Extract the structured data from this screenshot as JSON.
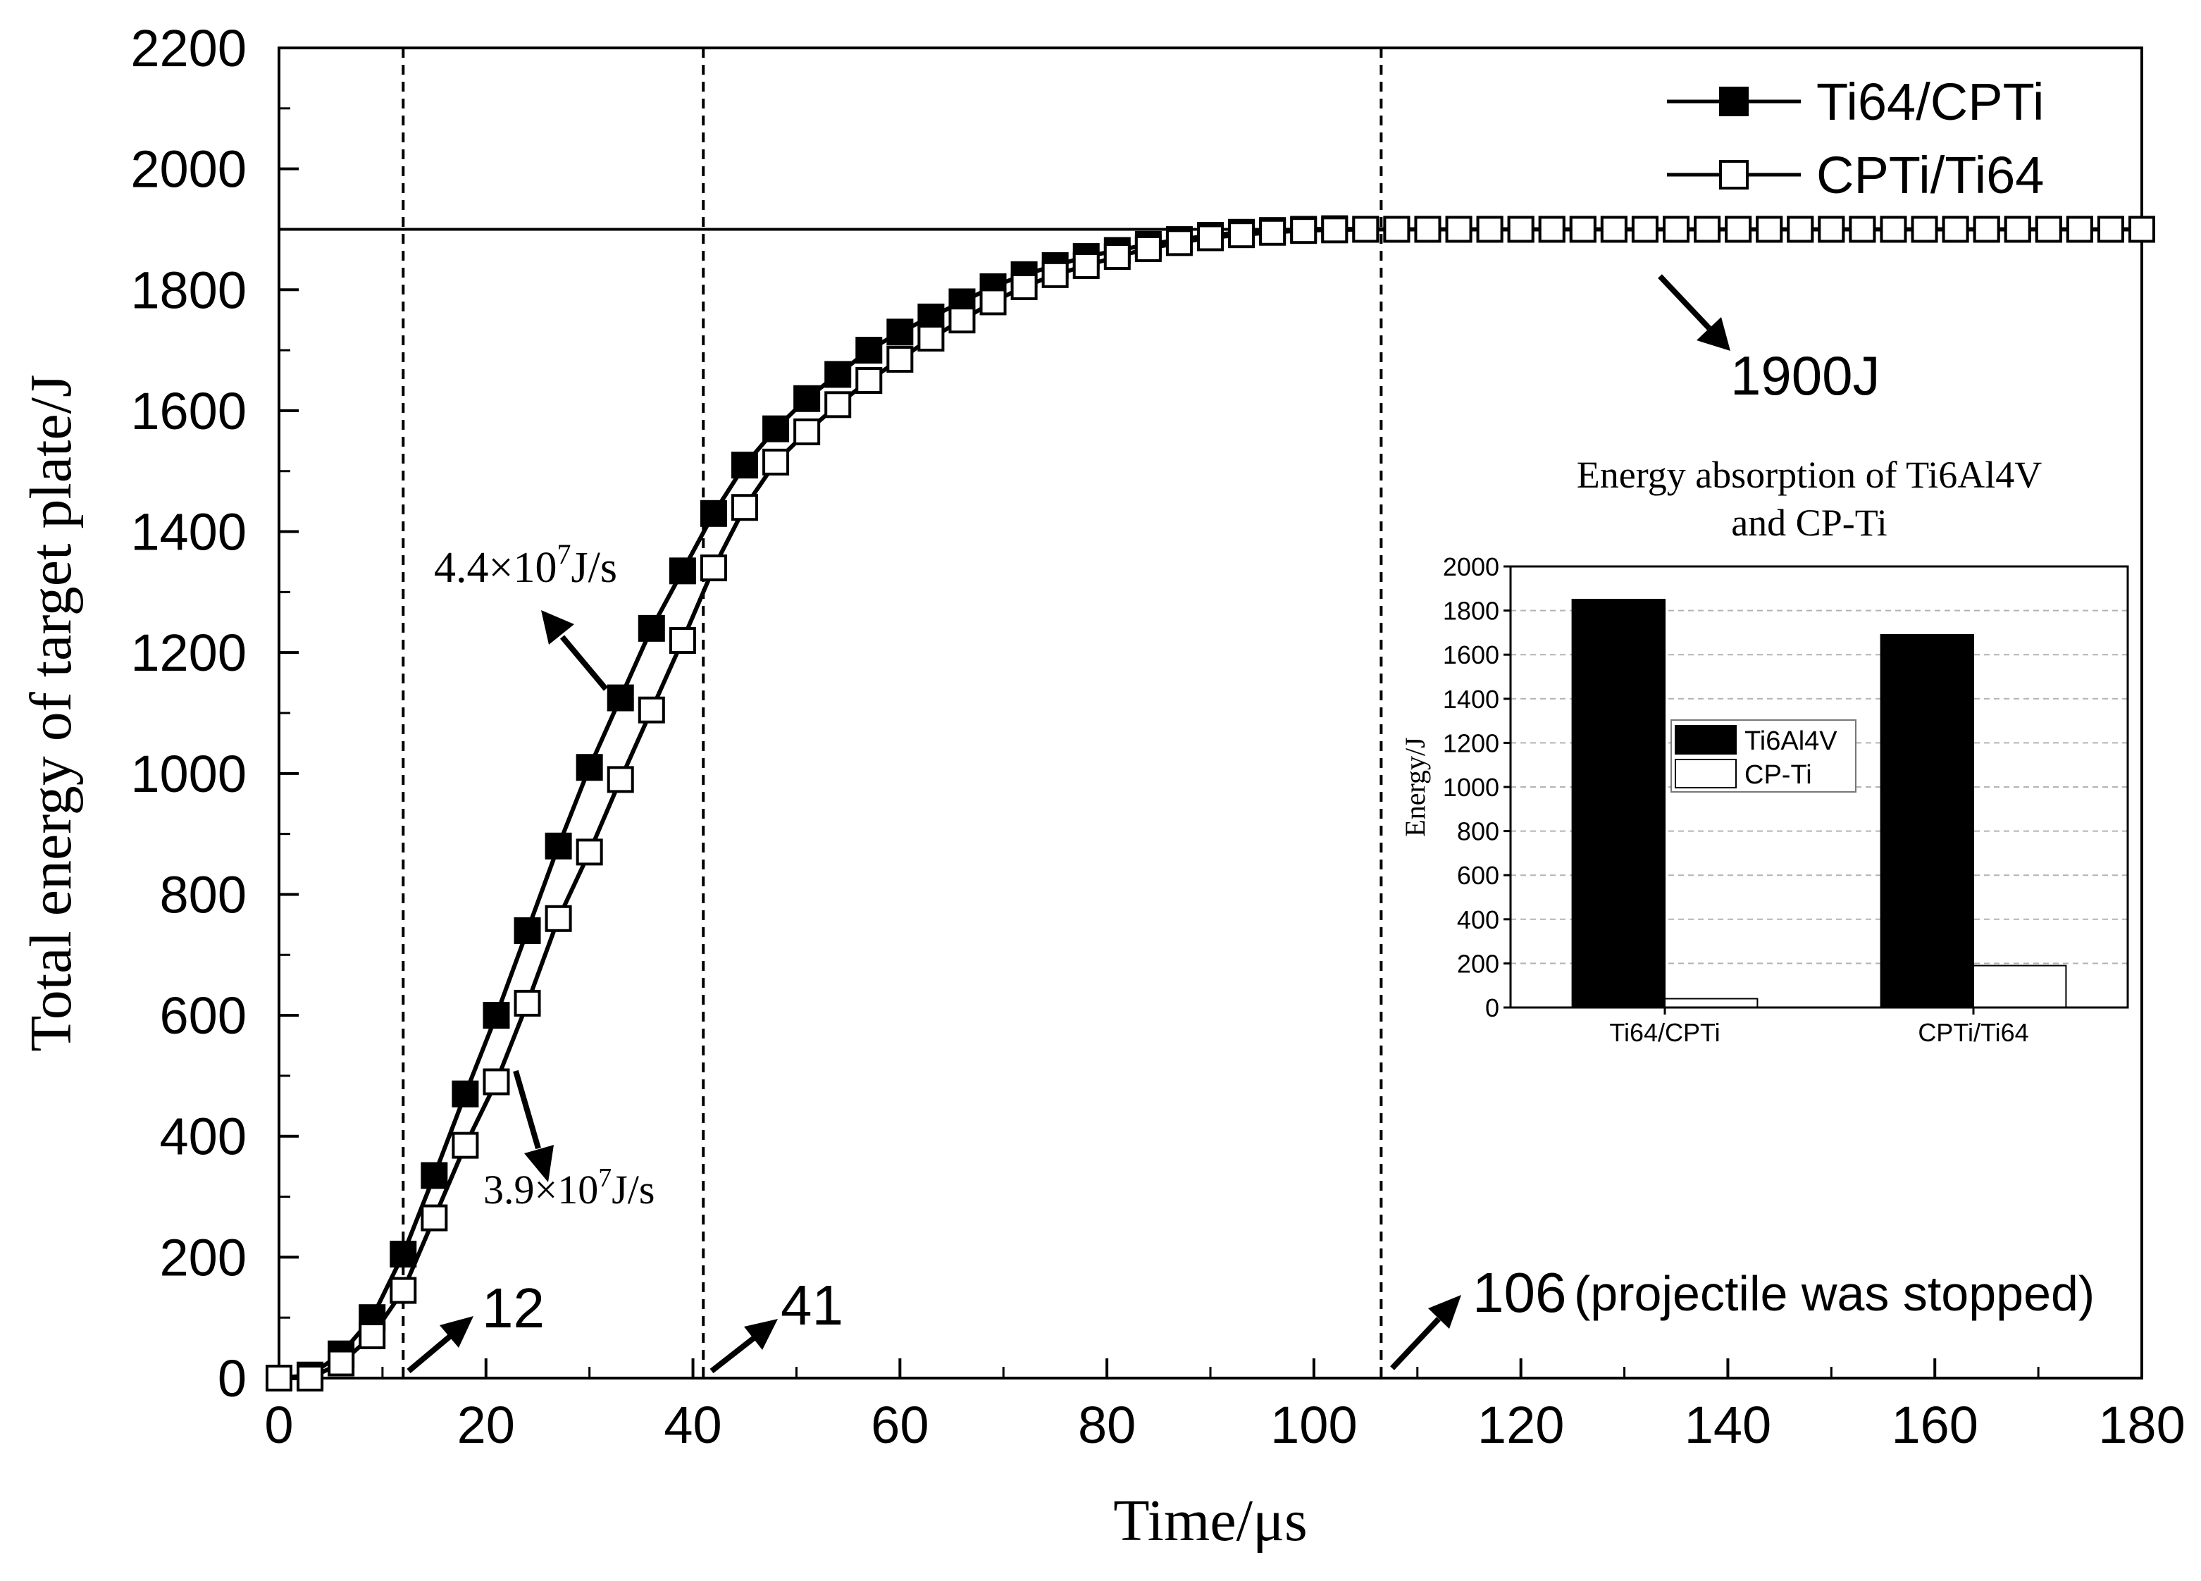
{
  "chart_data": [
    {
      "type": "line",
      "title": "",
      "xlabel": "Time/μs",
      "ylabel": "Total energy of target plate/J",
      "xlim": [
        0,
        180
      ],
      "ylim": [
        0,
        2200
      ],
      "xticks": [
        0,
        20,
        40,
        60,
        80,
        100,
        120,
        140,
        160,
        180
      ],
      "yticks": [
        0,
        200,
        400,
        600,
        800,
        1000,
        1200,
        1400,
        1600,
        1800,
        2000,
        2200
      ],
      "grid": false,
      "legend_position": "top-right",
      "colors": {
        "ink": "#000000",
        "background": "#ffffff",
        "grid": "#b3b3b3"
      },
      "reference_line": {
        "y": 1900,
        "label": "1900J"
      },
      "vertical_lines": [
        {
          "x": 12,
          "label": "12"
        },
        {
          "x": 41,
          "label": "41"
        },
        {
          "x": 106.5,
          "label": "106",
          "note": "(projectile was stopped)"
        }
      ],
      "slope_labels": {
        "upper": {
          "base": "4.4×10",
          "exp": "7",
          "unit": "J/s"
        },
        "lower": {
          "base": "3.9×10",
          "exp": "7",
          "unit": "J/s"
        }
      },
      "series": [
        {
          "name": "Ti64/CPTi",
          "marker": "filled-square",
          "x": [
            0,
            3,
            6,
            9,
            12,
            15,
            18,
            21,
            24,
            27,
            30,
            33,
            36,
            39,
            42,
            45,
            48,
            51,
            54,
            57,
            60,
            63,
            66,
            69,
            72,
            75,
            78,
            81,
            84,
            87,
            90,
            93,
            96,
            99,
            102,
            105,
            108,
            111,
            114,
            117,
            120,
            123,
            126,
            129,
            132,
            135,
            138,
            141,
            144,
            147,
            150,
            153,
            156,
            159,
            162,
            165,
            168,
            171,
            174,
            177,
            180
          ],
          "values": [
            0,
            5,
            40,
            100,
            205,
            335,
            470,
            600,
            740,
            880,
            1010,
            1125,
            1240,
            1335,
            1430,
            1510,
            1570,
            1620,
            1660,
            1700,
            1730,
            1755,
            1780,
            1805,
            1825,
            1840,
            1855,
            1865,
            1875,
            1883,
            1890,
            1895,
            1898,
            1900,
            1901,
            1900,
            1900,
            1900,
            1900,
            1900,
            1900,
            1900,
            1900,
            1900,
            1900,
            1900,
            1900,
            1900,
            1900,
            1900,
            1900,
            1900,
            1900,
            1900,
            1900,
            1900,
            1900,
            1900,
            1900,
            1900,
            1900
          ]
        },
        {
          "name": "CPTi/Ti64",
          "marker": "open-square",
          "x": [
            0,
            3,
            6,
            9,
            12,
            15,
            18,
            21,
            24,
            27,
            30,
            33,
            36,
            39,
            42,
            45,
            48,
            51,
            54,
            57,
            60,
            63,
            66,
            69,
            72,
            75,
            78,
            81,
            84,
            87,
            90,
            93,
            96,
            99,
            102,
            105,
            108,
            111,
            114,
            117,
            120,
            123,
            126,
            129,
            132,
            135,
            138,
            141,
            144,
            147,
            150,
            153,
            156,
            159,
            162,
            165,
            168,
            171,
            174,
            177,
            180
          ],
          "values": [
            0,
            0,
            25,
            70,
            145,
            265,
            385,
            490,
            620,
            760,
            870,
            990,
            1105,
            1220,
            1340,
            1440,
            1515,
            1565,
            1610,
            1650,
            1685,
            1720,
            1750,
            1780,
            1805,
            1825,
            1840,
            1855,
            1868,
            1878,
            1886,
            1891,
            1895,
            1898,
            1899,
            1900,
            1900,
            1900,
            1900,
            1900,
            1900,
            1900,
            1900,
            1900,
            1900,
            1900,
            1900,
            1900,
            1900,
            1900,
            1900,
            1900,
            1900,
            1900,
            1900,
            1900,
            1900,
            1900,
            1900,
            1900,
            1900
          ]
        }
      ]
    },
    {
      "type": "bar",
      "title_lines": [
        "Energy absorption of Ti6Al4V",
        "and CP-Ti"
      ],
      "xlabel": "",
      "ylabel": "Energy/J",
      "ylim": [
        0,
        2000
      ],
      "yticks": [
        0,
        200,
        400,
        600,
        800,
        1000,
        1200,
        1400,
        1600,
        1800,
        2000
      ],
      "grid": true,
      "legend_position": "center-left",
      "categories": [
        "Ti64/CPTi",
        "CPTi/Ti64"
      ],
      "series": [
        {
          "name": "Ti6Al4V",
          "fill": "#000000",
          "values": [
            1850,
            1690
          ]
        },
        {
          "name": "CP-Ti",
          "fill": "#ffffff",
          "values": [
            40,
            190
          ]
        }
      ]
    }
  ]
}
